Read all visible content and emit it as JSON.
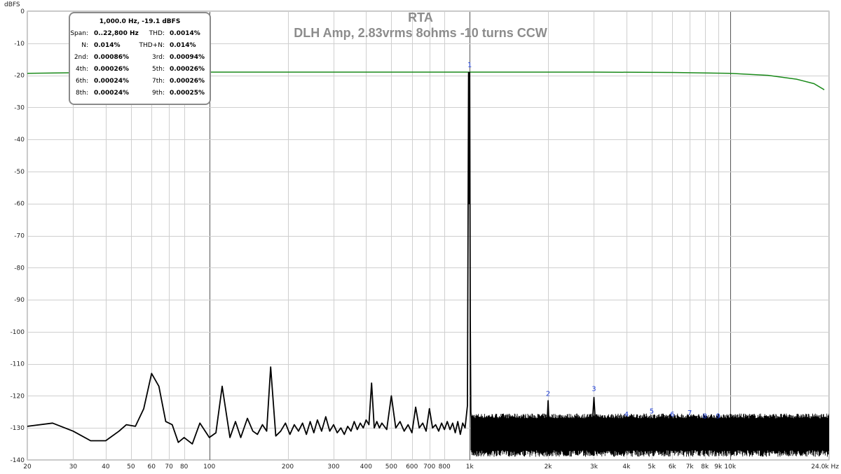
{
  "chart_data": {
    "type": "line",
    "title": "RTA",
    "subtitle": "DLH Amp, 2.83vrms 8ohms -10 turns CCW",
    "ylabel": "dBFS",
    "xunit": "Hz",
    "x_scale": "log",
    "xlim": [
      20,
      24000
    ],
    "ylim": [
      -140,
      0
    ],
    "grid": true,
    "x_ticks": [
      20,
      30,
      40,
      50,
      60,
      70,
      80,
      100,
      200,
      300,
      400,
      500,
      600,
      700,
      800,
      1000,
      2000,
      3000,
      4000,
      5000,
      6000,
      7000,
      8000,
      9000,
      10000,
      24000
    ],
    "x_tick_labels": [
      "20",
      "30",
      "40",
      "50",
      "60",
      "70",
      "80",
      "100",
      "200",
      "300",
      "400",
      "500",
      "600",
      "700",
      "800",
      "1k",
      "2k",
      "3k",
      "4k",
      "5k",
      "6k",
      "7k",
      "8k",
      "9k",
      "10k",
      "24.0k Hz"
    ],
    "y_ticks": [
      0,
      -10,
      -20,
      -30,
      -40,
      -50,
      -60,
      -70,
      -80,
      -90,
      -100,
      -110,
      -120,
      -130,
      -140
    ],
    "y_tick_labels": [
      "0",
      "-10",
      "-20",
      "-30",
      "-40",
      "-50",
      "-60",
      "-70",
      "-80",
      "-90",
      "-100",
      "-110",
      "-120",
      "-130",
      "-140"
    ],
    "series": [
      {
        "color": "#1a8a1a",
        "x": [
          20,
          30,
          50,
          100,
          300,
          1000,
          3000,
          6000,
          10000,
          14000,
          18000,
          21000,
          23000
        ],
        "y": [
          -19.4,
          -19.2,
          -19.1,
          -19.0,
          -19.0,
          -19.0,
          -19.0,
          -19.1,
          -19.4,
          -20.0,
          -21.2,
          -22.6,
          -24.5
        ]
      },
      {
        "color": "#000000",
        "x": [
          20,
          25,
          30,
          35,
          40,
          45,
          48,
          52,
          56,
          60,
          64,
          68,
          72,
          76,
          80,
          86,
          92,
          100,
          106,
          112,
          120,
          126,
          132,
          140,
          147,
          153,
          160,
          166,
          172,
          180,
          188,
          196,
          204,
          212,
          220,
          228,
          236,
          244,
          252,
          260,
          270,
          280,
          290,
          300,
          310,
          320,
          330,
          340,
          350,
          360,
          370,
          380,
          390,
          400,
          410,
          420,
          430,
          440,
          450,
          460,
          480,
          500,
          520,
          540,
          560,
          580,
          600,
          620,
          640,
          660,
          680,
          700,
          720,
          740,
          760,
          780,
          800,
          820,
          840,
          860,
          880,
          900,
          920,
          940,
          960,
          980,
          990,
          995,
          1000,
          1005,
          1010,
          1020,
          1040,
          1060,
          1100,
          1150,
          1200,
          1300,
          1400,
          1500,
          1600,
          1700,
          1800,
          1900,
          1980,
          2000,
          2020,
          2100,
          2200,
          2400,
          2600,
          2800,
          2950,
          3000,
          3050,
          3200,
          3500,
          3800,
          4000,
          4200,
          4500,
          5000,
          5500,
          6000,
          6500,
          7000,
          7500,
          8000,
          8500,
          9000,
          10000,
          11000,
          12000,
          13000,
          14000,
          15000,
          16000,
          17000,
          18000,
          19000,
          20000,
          21000,
          22000,
          23000,
          24000
        ],
        "y": [
          -129.5,
          -128.5,
          -131.0,
          -134.0,
          -134.0,
          -131.0,
          -129.0,
          -129.5,
          -124.0,
          -113.0,
          -117.0,
          -128.0,
          -129.0,
          -134.5,
          -133.0,
          -135.0,
          -128.5,
          -133.0,
          -131.5,
          -117.0,
          -133.0,
          -128.0,
          -133.0,
          -127.0,
          -131.0,
          -132.0,
          -129.0,
          -131.0,
          -111.0,
          -132.5,
          -131.0,
          -128.5,
          -132.0,
          -129.0,
          -131.0,
          -128.5,
          -132.0,
          -128.0,
          -131.5,
          -127.5,
          -131.0,
          -126.5,
          -131.0,
          -129.0,
          -131.5,
          -130.0,
          -132.0,
          -129.5,
          -131.0,
          -128.0,
          -130.5,
          -128.5,
          -130.0,
          -127.5,
          -129.0,
          -116.0,
          -130.0,
          -128.0,
          -130.0,
          -128.5,
          -130.5,
          -120.0,
          -130.0,
          -128.0,
          -131.0,
          -129.0,
          -131.5,
          -123.5,
          -130.0,
          -128.5,
          -131.0,
          -124.0,
          -130.0,
          -129.0,
          -131.0,
          -128.5,
          -130.5,
          -128.0,
          -130.5,
          -128.5,
          -131.5,
          -128.0,
          -132.0,
          -128.5,
          -130.0,
          -123.0,
          -19.1,
          -60.0,
          -19.1,
          -95.0,
          -125.0,
          -130.5,
          -129.0,
          -131.0,
          -129.5,
          -130.0,
          -129.5,
          -130.0,
          -130.5,
          -129.5,
          -130.5,
          -130.0,
          -130.5,
          -131.0,
          -130.0,
          -121.5,
          -131.5,
          -130.0,
          -130.5,
          -129.5,
          -130.5,
          -130.0,
          -130.0,
          -120.5,
          -130.5,
          -130.0,
          -130.0,
          -129.5,
          -129.5,
          -130.0,
          -129.5,
          -130.0,
          -130.0,
          -129.5,
          -130.0,
          -129.5,
          -130.0,
          -129.5,
          -130.0,
          -130.0,
          -130.0,
          -130.0,
          -130.0,
          -130.0,
          -130.0,
          -130.0,
          -130.5,
          -130.0,
          -130.5,
          -130.5,
          -131.0,
          -131.0,
          -131.5,
          -132.0,
          -133.0
        ],
        "noise_band_dB": [
          -137,
          -127
        ]
      }
    ],
    "annotations": [
      {
        "text": "1",
        "x": 1000,
        "y": -17.5
      },
      {
        "text": "2",
        "x": 2000,
        "y": -120.0
      },
      {
        "text": "3",
        "x": 3000,
        "y": -118.5
      },
      {
        "text": "4",
        "x": 4000,
        "y": -126.5
      },
      {
        "text": "5",
        "x": 5000,
        "y": -125.5
      },
      {
        "text": "6",
        "x": 6000,
        "y": -126.5
      },
      {
        "text": "7",
        "x": 7000,
        "y": -126.0
      },
      {
        "text": "8",
        "x": 8000,
        "y": -127.0
      },
      {
        "text": "9",
        "x": 9000,
        "y": -127.0
      }
    ],
    "info": {
      "header": "1,000.0 Hz, -19.1 dBFS",
      "rows": [
        {
          "l1": "Span:",
          "v1": "0..22,800 Hz",
          "l2": "THD:",
          "v2": "0.0014%"
        },
        {
          "l1": "N:",
          "v1": "0.014%",
          "l2": "THD+N:",
          "v2": "0.014%"
        },
        {
          "l1": "2nd:",
          "v1": "0.00086%",
          "l2": "3rd:",
          "v2": "0.00094%"
        },
        {
          "l1": "4th:",
          "v1": "0.00026%",
          "l2": "5th:",
          "v2": "0.00026%"
        },
        {
          "l1": "6th:",
          "v1": "0.00024%",
          "l2": "7th:",
          "v2": "0.00026%"
        },
        {
          "l1": "8th:",
          "v1": "0.00024%",
          "l2": "9th:",
          "v2": "0.00025%"
        }
      ]
    }
  }
}
